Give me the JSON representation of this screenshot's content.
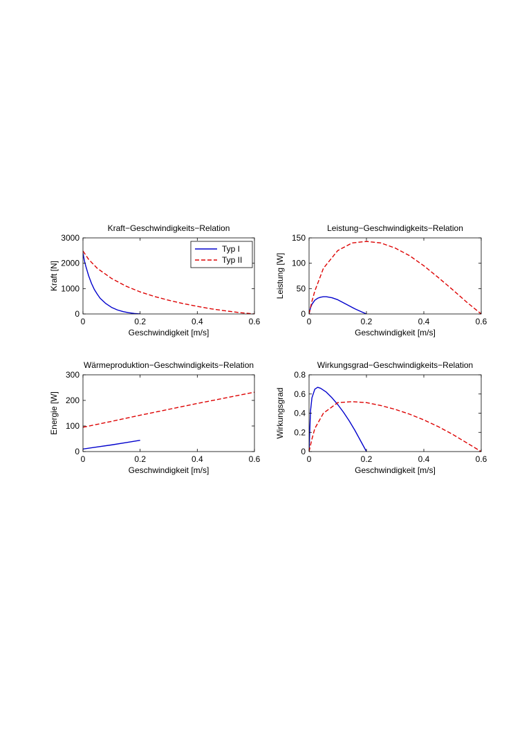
{
  "chart_data": [
    {
      "type": "line",
      "title": "Kraft−Geschwindigkeits−Relation",
      "xlabel": "Geschwindigkeit [m/s]",
      "ylabel": "Kraft [N]",
      "xlim": [
        0,
        0.6
      ],
      "ylim": [
        0,
        3000
      ],
      "xticks": [
        0,
        0.2,
        0.4,
        0.6
      ],
      "xtick_labels": [
        "0",
        "0.2",
        "0.4",
        "0.6"
      ],
      "yticks": [
        0,
        1000,
        2000,
        3000
      ],
      "ytick_labels": [
        "0",
        "1000",
        "2000",
        "3000"
      ],
      "grid": false,
      "legend": "top-right",
      "series": [
        {
          "name": "Typ I",
          "color": "#0000cc",
          "style": "solid",
          "x": [
            0,
            0.005,
            0.01,
            0.02,
            0.03,
            0.04,
            0.05,
            0.06,
            0.08,
            0.1,
            0.12,
            0.14,
            0.16,
            0.18,
            0.2
          ],
          "y": [
            2400,
            2100,
            1880,
            1500,
            1200,
            960,
            780,
            620,
            410,
            260,
            160,
            95,
            50,
            18,
            0
          ]
        },
        {
          "name": "Typ II",
          "color": "#dd0000",
          "style": "dashed",
          "x": [
            0,
            0.02,
            0.05,
            0.1,
            0.15,
            0.2,
            0.25,
            0.3,
            0.35,
            0.4,
            0.45,
            0.5,
            0.55,
            0.6
          ],
          "y": [
            2480,
            2150,
            1800,
            1400,
            1100,
            870,
            690,
            540,
            410,
            300,
            200,
            120,
            50,
            0
          ]
        }
      ]
    },
    {
      "type": "line",
      "title": "Leistung−Geschwindigkeits−Relation",
      "xlabel": "Geschwindigkeit [m/s]",
      "ylabel": "Leistung [W]",
      "xlim": [
        0,
        0.6
      ],
      "ylim": [
        0,
        150
      ],
      "xticks": [
        0,
        0.2,
        0.4,
        0.6
      ],
      "xtick_labels": [
        "0",
        "0.2",
        "0.4",
        "0.6"
      ],
      "yticks": [
        0,
        50,
        100,
        150
      ],
      "ytick_labels": [
        "0",
        "50",
        "100",
        "150"
      ],
      "grid": false,
      "series": [
        {
          "name": "Typ I",
          "color": "#0000cc",
          "style": "solid",
          "x": [
            0,
            0.005,
            0.01,
            0.02,
            0.03,
            0.04,
            0.05,
            0.06,
            0.08,
            0.1,
            0.12,
            0.14,
            0.16,
            0.18,
            0.2
          ],
          "y": [
            0,
            12,
            19,
            27,
            31,
            33,
            34,
            34,
            32,
            28,
            22,
            16,
            10,
            5,
            0
          ]
        },
        {
          "name": "Typ II",
          "color": "#dd0000",
          "style": "dashed",
          "x": [
            0,
            0.01,
            0.02,
            0.05,
            0.1,
            0.15,
            0.2,
            0.25,
            0.3,
            0.35,
            0.4,
            0.45,
            0.5,
            0.55,
            0.6
          ],
          "y": [
            0,
            25,
            45,
            90,
            125,
            140,
            143,
            140,
            130,
            115,
            95,
            72,
            48,
            23,
            0
          ]
        }
      ]
    },
    {
      "type": "line",
      "title": "Wärmeproduktion−Geschwindigkeits−Relation",
      "xlabel": "Geschwindigkeit [m/s]",
      "ylabel": "Energie [W]",
      "xlim": [
        0,
        0.6
      ],
      "ylim": [
        0,
        300
      ],
      "xticks": [
        0,
        0.2,
        0.4,
        0.6
      ],
      "xtick_labels": [
        "0",
        "0.2",
        "0.4",
        "0.6"
      ],
      "yticks": [
        0,
        100,
        200,
        300
      ],
      "ytick_labels": [
        "0",
        "100",
        "200",
        "300"
      ],
      "grid": false,
      "series": [
        {
          "name": "Typ I",
          "color": "#0000cc",
          "style": "solid",
          "x": [
            0,
            0.05,
            0.1,
            0.15,
            0.2
          ],
          "y": [
            10,
            18,
            26,
            35,
            44
          ]
        },
        {
          "name": "Typ II",
          "color": "#dd0000",
          "style": "dashed",
          "x": [
            0,
            0.1,
            0.2,
            0.3,
            0.4,
            0.5,
            0.6
          ],
          "y": [
            95,
            118,
            142,
            165,
            188,
            210,
            232
          ]
        }
      ]
    },
    {
      "type": "line",
      "title": "Wirkungsgrad−Geschwindigkeits−Relation",
      "xlabel": "Geschwindigkeit [m/s]",
      "ylabel": "Wirkungsgrad",
      "xlim": [
        0,
        0.6
      ],
      "ylim": [
        0,
        0.8
      ],
      "xticks": [
        0,
        0.2,
        0.4,
        0.6
      ],
      "xtick_labels": [
        "0",
        "0.2",
        "0.4",
        "0.6"
      ],
      "yticks": [
        0,
        0.2,
        0.4,
        0.6,
        0.8
      ],
      "ytick_labels": [
        "0",
        "0.2",
        "0.4",
        "0.6",
        "0.8"
      ],
      "grid": false,
      "series": [
        {
          "name": "Typ I",
          "color": "#0000cc",
          "style": "solid",
          "x": [
            0,
            0.005,
            0.01,
            0.02,
            0.03,
            0.04,
            0.06,
            0.08,
            0.1,
            0.12,
            0.14,
            0.16,
            0.18,
            0.2
          ],
          "y": [
            0,
            0.42,
            0.56,
            0.65,
            0.67,
            0.66,
            0.62,
            0.56,
            0.49,
            0.41,
            0.32,
            0.22,
            0.11,
            0
          ]
        },
        {
          "name": "Typ II",
          "color": "#dd0000",
          "style": "dashed",
          "x": [
            0,
            0.01,
            0.02,
            0.05,
            0.1,
            0.15,
            0.2,
            0.25,
            0.3,
            0.35,
            0.4,
            0.45,
            0.5,
            0.55,
            0.6
          ],
          "y": [
            0,
            0.13,
            0.24,
            0.4,
            0.51,
            0.52,
            0.51,
            0.48,
            0.44,
            0.39,
            0.33,
            0.26,
            0.18,
            0.09,
            0
          ]
        }
      ]
    }
  ]
}
